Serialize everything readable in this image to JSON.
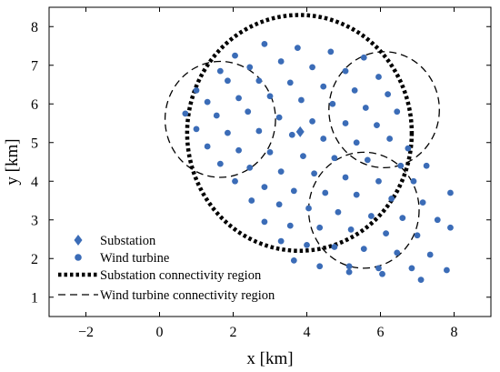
{
  "colors": {
    "marker": "#3b6cb7",
    "line": "#000000",
    "axes": "#000000",
    "background": "#ffffff"
  },
  "chart_data": {
    "type": "scatter",
    "title": "",
    "xlabel": "x [km]",
    "ylabel": "y [km]",
    "xlim": [
      -3,
      9
    ],
    "ylim": [
      0.5,
      8.5
    ],
    "xticks": [
      -2,
      0,
      2,
      4,
      6,
      8
    ],
    "yticks": [
      1,
      2,
      3,
      4,
      5,
      6,
      7,
      8
    ],
    "xtick_labels": [
      "−2",
      "0",
      "2",
      "4",
      "6",
      "8"
    ],
    "ytick_labels": [
      "1",
      "2",
      "3",
      "4",
      "5",
      "6",
      "7",
      "8"
    ],
    "grid": false,
    "legend_position": "bottom-left",
    "legend": [
      {
        "label": "Substation",
        "marker": "diamond"
      },
      {
        "label": "Wind turbine",
        "marker": "circle"
      },
      {
        "label": "Substation connectivity region",
        "line": "dotted"
      },
      {
        "label": "Wind turbine connectivity region",
        "line": "dashed"
      }
    ],
    "substation": {
      "x": 3.82,
      "y": 5.28
    },
    "turbines": [
      [
        2.05,
        7.25
      ],
      [
        2.85,
        7.55
      ],
      [
        3.75,
        7.45
      ],
      [
        4.65,
        7.35
      ],
      [
        5.55,
        7.2
      ],
      [
        1.65,
        6.85
      ],
      [
        2.45,
        6.95
      ],
      [
        3.3,
        7.1
      ],
      [
        4.15,
        6.95
      ],
      [
        5.05,
        6.85
      ],
      [
        5.95,
        6.7
      ],
      [
        1.0,
        6.35
      ],
      [
        1.85,
        6.6
      ],
      [
        2.7,
        6.6
      ],
      [
        3.55,
        6.55
      ],
      [
        4.45,
        6.45
      ],
      [
        5.3,
        6.35
      ],
      [
        6.2,
        6.25
      ],
      [
        1.3,
        6.05
      ],
      [
        2.15,
        6.15
      ],
      [
        3.0,
        6.2
      ],
      [
        3.85,
        6.1
      ],
      [
        4.7,
        6.0
      ],
      [
        5.6,
        5.9
      ],
      [
        6.45,
        5.8
      ],
      [
        0.7,
        5.75
      ],
      [
        1.55,
        5.7
      ],
      [
        2.4,
        5.8
      ],
      [
        3.25,
        5.65
      ],
      [
        4.15,
        5.55
      ],
      [
        5.05,
        5.5
      ],
      [
        5.9,
        5.45
      ],
      [
        1.0,
        5.35
      ],
      [
        1.85,
        5.25
      ],
      [
        2.7,
        5.3
      ],
      [
        3.6,
        5.2
      ],
      [
        4.45,
        5.1
      ],
      [
        5.35,
        5.0
      ],
      [
        6.25,
        5.1
      ],
      [
        6.75,
        4.85
      ],
      [
        1.3,
        4.9
      ],
      [
        2.15,
        4.8
      ],
      [
        3.0,
        4.75
      ],
      [
        3.9,
        4.65
      ],
      [
        4.75,
        4.6
      ],
      [
        5.65,
        4.55
      ],
      [
        6.55,
        4.4
      ],
      [
        7.25,
        4.4
      ],
      [
        1.65,
        4.45
      ],
      [
        2.45,
        4.35
      ],
      [
        3.3,
        4.25
      ],
      [
        4.2,
        4.2
      ],
      [
        5.05,
        4.1
      ],
      [
        5.95,
        4.0
      ],
      [
        6.9,
        4.0
      ],
      [
        2.05,
        4.0
      ],
      [
        2.85,
        3.85
      ],
      [
        3.65,
        3.75
      ],
      [
        4.5,
        3.7
      ],
      [
        5.35,
        3.65
      ],
      [
        6.3,
        3.55
      ],
      [
        7.15,
        3.45
      ],
      [
        7.9,
        3.7
      ],
      [
        2.5,
        3.5
      ],
      [
        3.25,
        3.4
      ],
      [
        4.05,
        3.3
      ],
      [
        4.85,
        3.2
      ],
      [
        5.75,
        3.1
      ],
      [
        6.6,
        3.05
      ],
      [
        7.55,
        3.0
      ],
      [
        2.85,
        2.95
      ],
      [
        3.55,
        2.85
      ],
      [
        4.35,
        2.8
      ],
      [
        5.2,
        2.75
      ],
      [
        6.15,
        2.65
      ],
      [
        7.0,
        2.6
      ],
      [
        7.9,
        2.8
      ],
      [
        3.3,
        2.45
      ],
      [
        4.0,
        2.35
      ],
      [
        4.75,
        2.3
      ],
      [
        5.55,
        2.25
      ],
      [
        6.45,
        2.15
      ],
      [
        7.35,
        2.1
      ],
      [
        3.65,
        1.95
      ],
      [
        4.35,
        1.8
      ],
      [
        5.15,
        1.8
      ],
      [
        5.95,
        1.75
      ],
      [
        6.85,
        1.75
      ],
      [
        7.8,
        1.7
      ],
      [
        5.15,
        1.65
      ],
      [
        6.05,
        1.6
      ],
      [
        7.1,
        1.45
      ]
    ],
    "substation_region": {
      "cx": 3.8,
      "cy": 5.25,
      "r": 3.05
    },
    "turbine_regions": [
      {
        "cx": 1.65,
        "cy": 5.6,
        "r": 1.5
      },
      {
        "cx": 6.1,
        "cy": 5.85,
        "r": 1.5
      },
      {
        "cx": 5.55,
        "cy": 3.25,
        "r": 1.5
      }
    ]
  }
}
